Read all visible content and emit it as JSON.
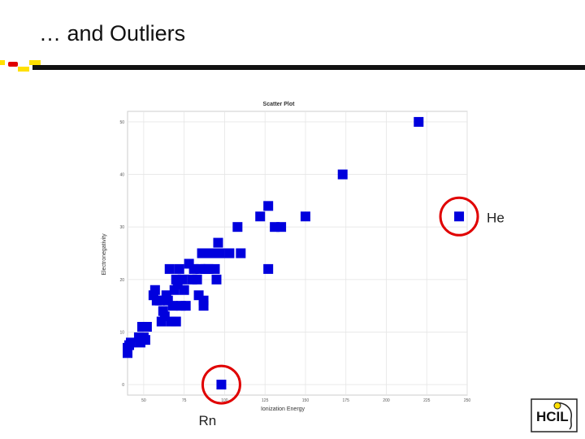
{
  "slide": {
    "title": "… and Outliers",
    "logo_text": "HCIL"
  },
  "colors": {
    "point": "#0000dd",
    "outlier_ring": "#e00000",
    "accent_yellow": "#ffe000",
    "accent_red": "#e00000"
  },
  "chart_data": {
    "type": "scatter",
    "title": "Scatter Plot",
    "xlabel": "Ionization Energy",
    "ylabel": "Electronegativity",
    "xlim": [
      40,
      250
    ],
    "ylim": [
      -2,
      52
    ],
    "xticks": [
      50,
      75,
      100,
      125,
      150,
      175,
      200,
      225,
      250
    ],
    "yticks": [
      0,
      10,
      20,
      30,
      40,
      50
    ],
    "grid": true,
    "points": [
      {
        "x": 40,
        "y": 7
      },
      {
        "x": 40,
        "y": 6
      },
      {
        "x": 42,
        "y": 8
      },
      {
        "x": 41,
        "y": 7.5
      },
      {
        "x": 47,
        "y": 9
      },
      {
        "x": 48,
        "y": 8
      },
      {
        "x": 49,
        "y": 11
      },
      {
        "x": 50,
        "y": 9
      },
      {
        "x": 52,
        "y": 11
      },
      {
        "x": 51,
        "y": 8.5
      },
      {
        "x": 56,
        "y": 17
      },
      {
        "x": 57,
        "y": 18
      },
      {
        "x": 58,
        "y": 16
      },
      {
        "x": 60,
        "y": 16
      },
      {
        "x": 61,
        "y": 12
      },
      {
        "x": 62,
        "y": 14
      },
      {
        "x": 63,
        "y": 13
      },
      {
        "x": 64,
        "y": 17
      },
      {
        "x": 65,
        "y": 16
      },
      {
        "x": 66,
        "y": 22
      },
      {
        "x": 67,
        "y": 12
      },
      {
        "x": 68,
        "y": 15
      },
      {
        "x": 69,
        "y": 18
      },
      {
        "x": 70,
        "y": 20
      },
      {
        "x": 70,
        "y": 12
      },
      {
        "x": 71,
        "y": 19
      },
      {
        "x": 72,
        "y": 22
      },
      {
        "x": 73,
        "y": 15
      },
      {
        "x": 74,
        "y": 20
      },
      {
        "x": 75,
        "y": 18
      },
      {
        "x": 76,
        "y": 15
      },
      {
        "x": 78,
        "y": 23
      },
      {
        "x": 80,
        "y": 20
      },
      {
        "x": 81,
        "y": 22
      },
      {
        "x": 83,
        "y": 20
      },
      {
        "x": 84,
        "y": 17
      },
      {
        "x": 85,
        "y": 22
      },
      {
        "x": 86,
        "y": 25
      },
      {
        "x": 87,
        "y": 16
      },
      {
        "x": 87,
        "y": 15
      },
      {
        "x": 88,
        "y": 22
      },
      {
        "x": 90,
        "y": 22
      },
      {
        "x": 92,
        "y": 25
      },
      {
        "x": 94,
        "y": 22
      },
      {
        "x": 95,
        "y": 20
      },
      {
        "x": 96,
        "y": 27
      },
      {
        "x": 97,
        "y": 25
      },
      {
        "x": 103,
        "y": 25
      },
      {
        "x": 108,
        "y": 30
      },
      {
        "x": 110,
        "y": 25
      },
      {
        "x": 122,
        "y": 32
      },
      {
        "x": 127,
        "y": 34
      },
      {
        "x": 127,
        "y": 22
      },
      {
        "x": 131,
        "y": 30
      },
      {
        "x": 135,
        "y": 30
      },
      {
        "x": 150,
        "y": 32
      },
      {
        "x": 173,
        "y": 40
      },
      {
        "x": 220,
        "y": 50
      },
      {
        "x": 98,
        "y": 0,
        "label": "Rn",
        "outlier": true
      },
      {
        "x": 245,
        "y": 32,
        "label": "He",
        "outlier": true
      }
    ]
  }
}
